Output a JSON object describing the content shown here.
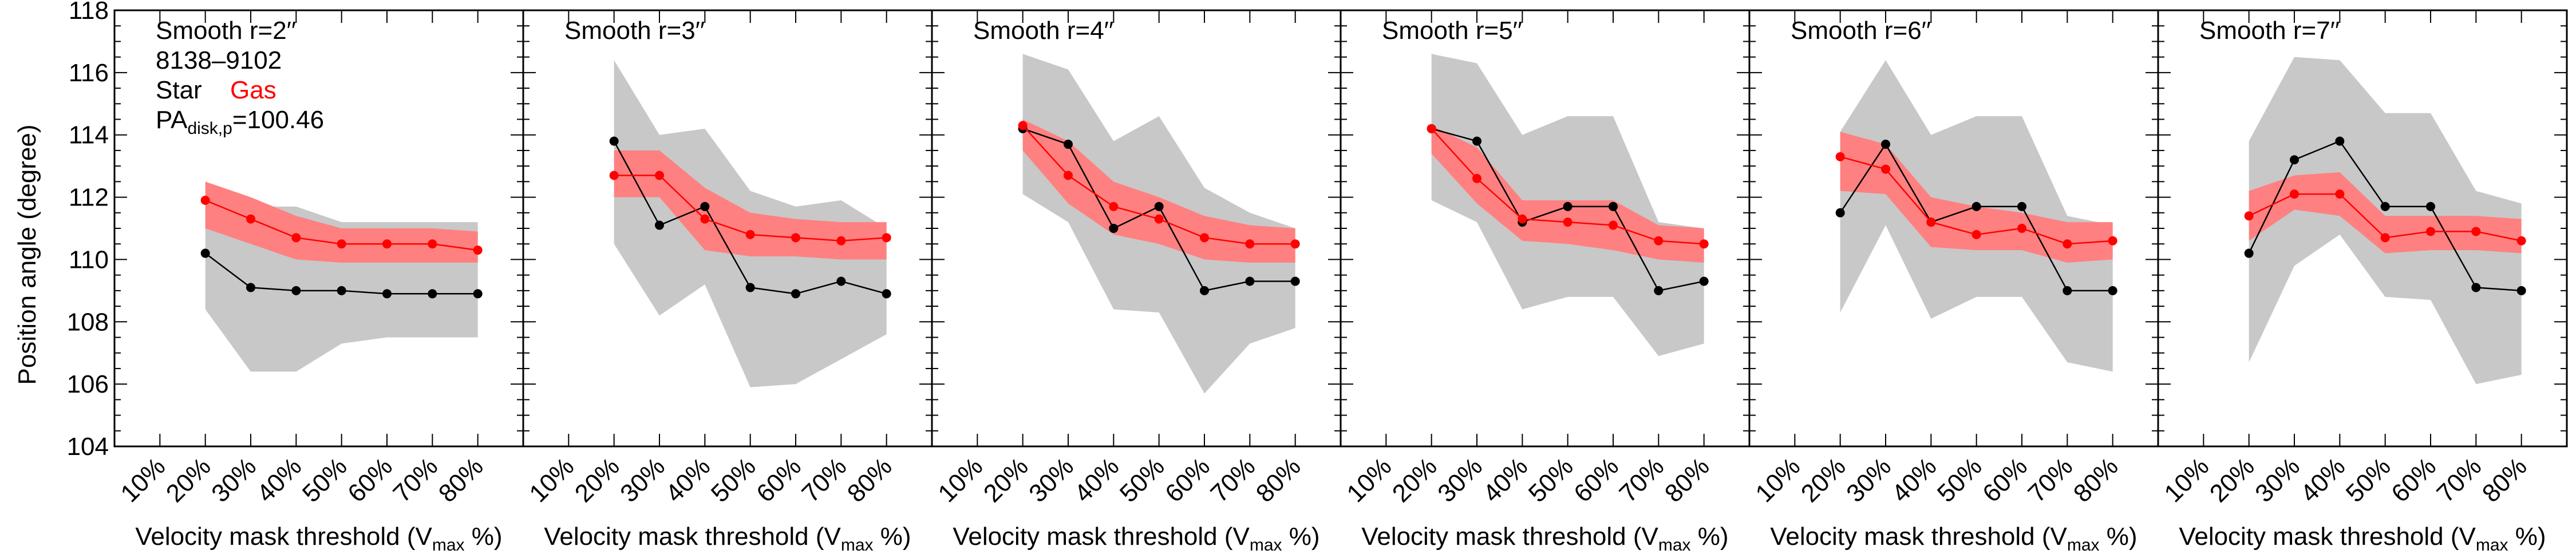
{
  "figure": {
    "ylabel": "Position angle (degree)",
    "xlabel_main": "Velocity mask threshold (V",
    "xlabel_sub": "max",
    "xlabel_tail": " %)"
  },
  "annotations": {
    "galaxy_id": "8138–9102",
    "legend_star": "Star",
    "legend_gas": "Gas",
    "pa_main": "PA",
    "pa_sub": "disk,p",
    "pa_value": "=100.46"
  },
  "colors": {
    "star": "#000000",
    "gas": "#ff0000",
    "gas_band": "#ff8080",
    "star_band": "#c8c8c8"
  },
  "chart_data": [
    {
      "type": "line",
      "title": "Smooth r=2′′",
      "categories": [
        "10%",
        "20%",
        "30%",
        "40%",
        "50%",
        "60%",
        "70%",
        "80%"
      ],
      "ylim": [
        104,
        118
      ],
      "yticks": [
        104,
        106,
        108,
        110,
        112,
        114,
        116,
        118
      ],
      "series": [
        {
          "name": "Star",
          "values": [
            null,
            110.2,
            109.1,
            109.0,
            109.0,
            108.9,
            108.9,
            108.9
          ],
          "band_lo": [
            null,
            108.4,
            106.4,
            106.4,
            107.3,
            107.5,
            107.5,
            107.5
          ],
          "band_hi": [
            null,
            111.7,
            111.7,
            111.7,
            111.2,
            111.2,
            111.2,
            111.2
          ]
        },
        {
          "name": "Gas",
          "values": [
            null,
            111.9,
            111.3,
            110.7,
            110.5,
            110.5,
            110.5,
            110.3
          ],
          "band_lo": [
            null,
            111.0,
            110.5,
            110.0,
            109.9,
            109.9,
            109.9,
            109.9
          ],
          "band_hi": [
            null,
            112.5,
            112.0,
            111.4,
            111.0,
            111.0,
            111.0,
            110.9
          ]
        }
      ]
    },
    {
      "type": "line",
      "title": "Smooth r=3′′",
      "categories": [
        "10%",
        "20%",
        "30%",
        "40%",
        "50%",
        "60%",
        "70%",
        "80%"
      ],
      "ylim": [
        104,
        118
      ],
      "yticks": [
        104,
        106,
        108,
        110,
        112,
        114,
        116,
        118
      ],
      "series": [
        {
          "name": "Star",
          "values": [
            null,
            113.8,
            111.1,
            111.7,
            109.1,
            108.9,
            109.3,
            108.9
          ],
          "band_lo": [
            null,
            110.5,
            108.2,
            109.2,
            105.9,
            106.0,
            106.8,
            107.6
          ],
          "band_hi": [
            null,
            116.4,
            114.0,
            114.2,
            112.2,
            111.7,
            111.9,
            111.0
          ]
        },
        {
          "name": "Gas",
          "values": [
            null,
            112.7,
            112.7,
            111.3,
            110.8,
            110.7,
            110.6,
            110.7
          ],
          "band_lo": [
            null,
            112.0,
            112.0,
            110.3,
            110.1,
            110.1,
            110.0,
            110.0
          ],
          "band_hi": [
            null,
            113.5,
            113.5,
            112.3,
            111.5,
            111.3,
            111.2,
            111.2
          ]
        }
      ]
    },
    {
      "type": "line",
      "title": "Smooth r=4′′",
      "categories": [
        "10%",
        "20%",
        "30%",
        "40%",
        "50%",
        "60%",
        "70%",
        "80%"
      ],
      "ylim": [
        104,
        118
      ],
      "yticks": [
        104,
        106,
        108,
        110,
        112,
        114,
        116,
        118
      ],
      "series": [
        {
          "name": "Star",
          "values": [
            null,
            114.2,
            113.7,
            111.0,
            111.7,
            109.0,
            109.3,
            109.3
          ],
          "band_lo": [
            null,
            112.1,
            111.2,
            108.4,
            108.3,
            105.7,
            107.3,
            107.8
          ],
          "band_hi": [
            null,
            116.6,
            116.1,
            113.8,
            114.6,
            112.3,
            111.5,
            111.0
          ]
        },
        {
          "name": "Gas",
          "values": [
            null,
            114.3,
            112.7,
            111.7,
            111.3,
            110.7,
            110.5,
            110.5
          ],
          "band_lo": [
            null,
            113.5,
            111.8,
            110.8,
            110.5,
            110.0,
            109.9,
            109.9
          ],
          "band_hi": [
            null,
            114.5,
            113.8,
            112.5,
            112.0,
            111.4,
            111.1,
            111.0
          ]
        }
      ]
    },
    {
      "type": "line",
      "title": "Smooth r=5′′",
      "categories": [
        "10%",
        "20%",
        "30%",
        "40%",
        "50%",
        "60%",
        "70%",
        "80%"
      ],
      "ylim": [
        104,
        118
      ],
      "yticks": [
        104,
        106,
        108,
        110,
        112,
        114,
        116,
        118
      ],
      "series": [
        {
          "name": "Star",
          "values": [
            null,
            114.2,
            113.8,
            111.2,
            111.7,
            111.7,
            109.0,
            109.3
          ],
          "band_lo": [
            null,
            111.9,
            111.2,
            108.4,
            108.8,
            108.8,
            106.9,
            107.3
          ],
          "band_hi": [
            null,
            116.6,
            116.3,
            114.0,
            114.6,
            114.6,
            111.2,
            111.0
          ]
        },
        {
          "name": "Gas",
          "values": [
            null,
            114.2,
            112.6,
            111.3,
            111.2,
            111.1,
            110.6,
            110.5
          ],
          "band_lo": [
            null,
            113.4,
            111.8,
            110.6,
            110.5,
            110.3,
            110.0,
            109.9
          ],
          "band_hi": [
            null,
            114.3,
            113.6,
            111.9,
            111.9,
            111.9,
            111.1,
            111.0
          ]
        }
      ]
    },
    {
      "type": "line",
      "title": "Smooth r=6′′",
      "categories": [
        "10%",
        "20%",
        "30%",
        "40%",
        "50%",
        "60%",
        "70%",
        "80%"
      ],
      "ylim": [
        104,
        118
      ],
      "yticks": [
        104,
        106,
        108,
        110,
        112,
        114,
        116,
        118
      ],
      "series": [
        {
          "name": "Star",
          "values": [
            null,
            111.5,
            113.7,
            111.2,
            111.7,
            111.7,
            109.0,
            109.0
          ],
          "band_lo": [
            null,
            108.3,
            111.1,
            108.1,
            108.8,
            108.8,
            106.7,
            106.4
          ],
          "band_hi": [
            null,
            114.1,
            116.4,
            114.0,
            114.6,
            114.6,
            111.4,
            111.1
          ]
        },
        {
          "name": "Gas",
          "values": [
            null,
            113.3,
            112.9,
            111.2,
            110.8,
            111.0,
            110.5,
            110.6
          ],
          "band_lo": [
            null,
            112.2,
            112.1,
            110.4,
            110.3,
            110.3,
            109.9,
            110.0
          ],
          "band_hi": [
            null,
            114.1,
            113.7,
            112.0,
            111.7,
            111.5,
            111.2,
            111.2
          ]
        }
      ]
    },
    {
      "type": "line",
      "title": "Smooth r=7′′",
      "categories": [
        "10%",
        "20%",
        "30%",
        "40%",
        "50%",
        "60%",
        "70%",
        "80%"
      ],
      "ylim": [
        104,
        118
      ],
      "yticks": [
        104,
        106,
        108,
        110,
        112,
        114,
        116,
        118
      ],
      "series": [
        {
          "name": "Star",
          "values": [
            null,
            110.2,
            113.2,
            113.8,
            111.7,
            111.7,
            109.1,
            109.0
          ],
          "band_lo": [
            null,
            106.7,
            109.8,
            110.8,
            108.8,
            108.7,
            106.0,
            106.3
          ],
          "band_hi": [
            null,
            113.8,
            116.5,
            116.4,
            114.7,
            114.7,
            112.2,
            111.8
          ]
        },
        {
          "name": "Gas",
          "values": [
            null,
            111.4,
            112.1,
            112.1,
            110.7,
            110.9,
            110.9,
            110.6
          ],
          "band_lo": [
            null,
            110.6,
            111.6,
            111.4,
            110.2,
            110.3,
            110.3,
            110.2
          ],
          "band_hi": [
            null,
            112.2,
            112.7,
            112.8,
            111.4,
            111.4,
            111.4,
            111.3
          ]
        }
      ]
    }
  ]
}
